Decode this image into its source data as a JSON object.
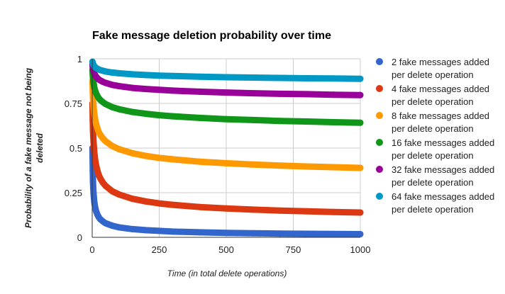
{
  "chart_data": {
    "type": "scatter",
    "title": "Fake message deletion probability over time",
    "xlabel": "Time (in total delete operations)",
    "ylabel_lines": [
      "Probability of a fake message not being",
      "deleted"
    ],
    "xlim": [
      0,
      1000
    ],
    "ylim": [
      0,
      1
    ],
    "x_ticks": [
      0,
      250,
      500,
      750,
      1000
    ],
    "x_tick_labels": [
      "0",
      "250",
      "500",
      "750",
      "1000"
    ],
    "y_ticks": [
      0,
      0.25,
      0.5,
      0.75,
      1
    ],
    "y_tick_labels": [
      "0",
      "0.25",
      "0.5",
      "0.75",
      "1"
    ],
    "grid": true,
    "legend_position": "right",
    "series": [
      {
        "name_lines": [
          "2 fake messages added",
          "per delete operation"
        ],
        "color": "#3366cc",
        "x": [
          1,
          2,
          3,
          4,
          5,
          6,
          8,
          10,
          12,
          15,
          20,
          25,
          30,
          40,
          50,
          75,
          100,
          150,
          200,
          250,
          300,
          400,
          500,
          600,
          700,
          800,
          900,
          1000
        ],
        "y": [
          0.5,
          0.375,
          0.3125,
          0.273,
          0.246,
          0.226,
          0.196,
          0.176,
          0.161,
          0.144,
          0.125,
          0.112,
          0.102,
          0.089,
          0.079,
          0.065,
          0.056,
          0.046,
          0.04,
          0.036,
          0.032,
          0.028,
          0.025,
          0.023,
          0.021,
          0.02,
          0.019,
          0.018
        ]
      },
      {
        "name_lines": [
          "4 fake messages added",
          "per delete operation"
        ],
        "color": "#dc3912",
        "x": [
          1,
          2,
          3,
          4,
          5,
          6,
          8,
          10,
          12,
          15,
          20,
          25,
          30,
          40,
          50,
          75,
          100,
          150,
          200,
          250,
          300,
          400,
          500,
          600,
          700,
          800,
          900,
          1000
        ],
        "y": [
          0.75,
          0.656,
          0.601,
          0.563,
          0.534,
          0.511,
          0.474,
          0.447,
          0.425,
          0.4,
          0.37,
          0.348,
          0.331,
          0.306,
          0.288,
          0.258,
          0.24,
          0.216,
          0.201,
          0.19,
          0.182,
          0.17,
          0.162,
          0.155,
          0.15,
          0.146,
          0.142,
          0.139
        ]
      },
      {
        "name_lines": [
          "8 fake messages added",
          "per delete operation"
        ],
        "color": "#ff9900",
        "x": [
          1,
          2,
          3,
          4,
          5,
          6,
          8,
          10,
          12,
          15,
          20,
          25,
          30,
          40,
          50,
          75,
          100,
          150,
          200,
          250,
          300,
          400,
          500,
          600,
          700,
          800,
          900,
          1000
        ],
        "y": [
          0.875,
          0.82,
          0.783,
          0.757,
          0.735,
          0.717,
          0.69,
          0.669,
          0.652,
          0.632,
          0.607,
          0.589,
          0.575,
          0.554,
          0.538,
          0.511,
          0.494,
          0.471,
          0.456,
          0.445,
          0.437,
          0.424,
          0.415,
          0.408,
          0.402,
          0.397,
          0.393,
          0.389
        ]
      },
      {
        "name_lines": [
          "16 fake messages added",
          "per delete operation"
        ],
        "color": "#109618",
        "x": [
          1,
          2,
          3,
          4,
          5,
          6,
          8,
          10,
          12,
          15,
          20,
          25,
          30,
          40,
          50,
          75,
          100,
          150,
          200,
          250,
          300,
          400,
          500,
          600,
          700,
          800,
          900,
          1000
        ],
        "y": [
          0.938,
          0.909,
          0.89,
          0.876,
          0.864,
          0.855,
          0.839,
          0.827,
          0.817,
          0.805,
          0.79,
          0.779,
          0.77,
          0.757,
          0.747,
          0.729,
          0.718,
          0.702,
          0.692,
          0.684,
          0.678,
          0.669,
          0.662,
          0.657,
          0.652,
          0.649,
          0.645,
          0.642
        ]
      },
      {
        "name_lines": [
          "32 fake messages added",
          "per delete operation"
        ],
        "color": "#990099",
        "x": [
          1,
          2,
          3,
          4,
          5,
          6,
          8,
          10,
          12,
          15,
          20,
          25,
          30,
          40,
          50,
          75,
          100,
          150,
          200,
          250,
          300,
          400,
          500,
          600,
          700,
          800,
          900,
          1000
        ],
        "y": [
          0.969,
          0.954,
          0.944,
          0.937,
          0.931,
          0.926,
          0.918,
          0.911,
          0.906,
          0.899,
          0.891,
          0.884,
          0.879,
          0.871,
          0.865,
          0.854,
          0.847,
          0.837,
          0.831,
          0.826,
          0.822,
          0.816,
          0.811,
          0.807,
          0.804,
          0.802,
          0.799,
          0.797
        ]
      },
      {
        "name_lines": [
          "64 fake messages added",
          "per delete operation"
        ],
        "color": "#0099c6",
        "x": [
          1,
          2,
          3,
          4,
          5,
          6,
          8,
          10,
          12,
          15,
          20,
          25,
          30,
          40,
          50,
          75,
          100,
          150,
          200,
          250,
          300,
          400,
          500,
          600,
          700,
          800,
          900,
          1000
        ],
        "y": [
          0.984,
          0.977,
          0.972,
          0.968,
          0.965,
          0.963,
          0.958,
          0.955,
          0.952,
          0.948,
          0.944,
          0.94,
          0.937,
          0.933,
          0.929,
          0.923,
          0.919,
          0.913,
          0.909,
          0.906,
          0.904,
          0.9,
          0.897,
          0.895,
          0.893,
          0.891,
          0.89,
          0.888
        ]
      }
    ]
  }
}
